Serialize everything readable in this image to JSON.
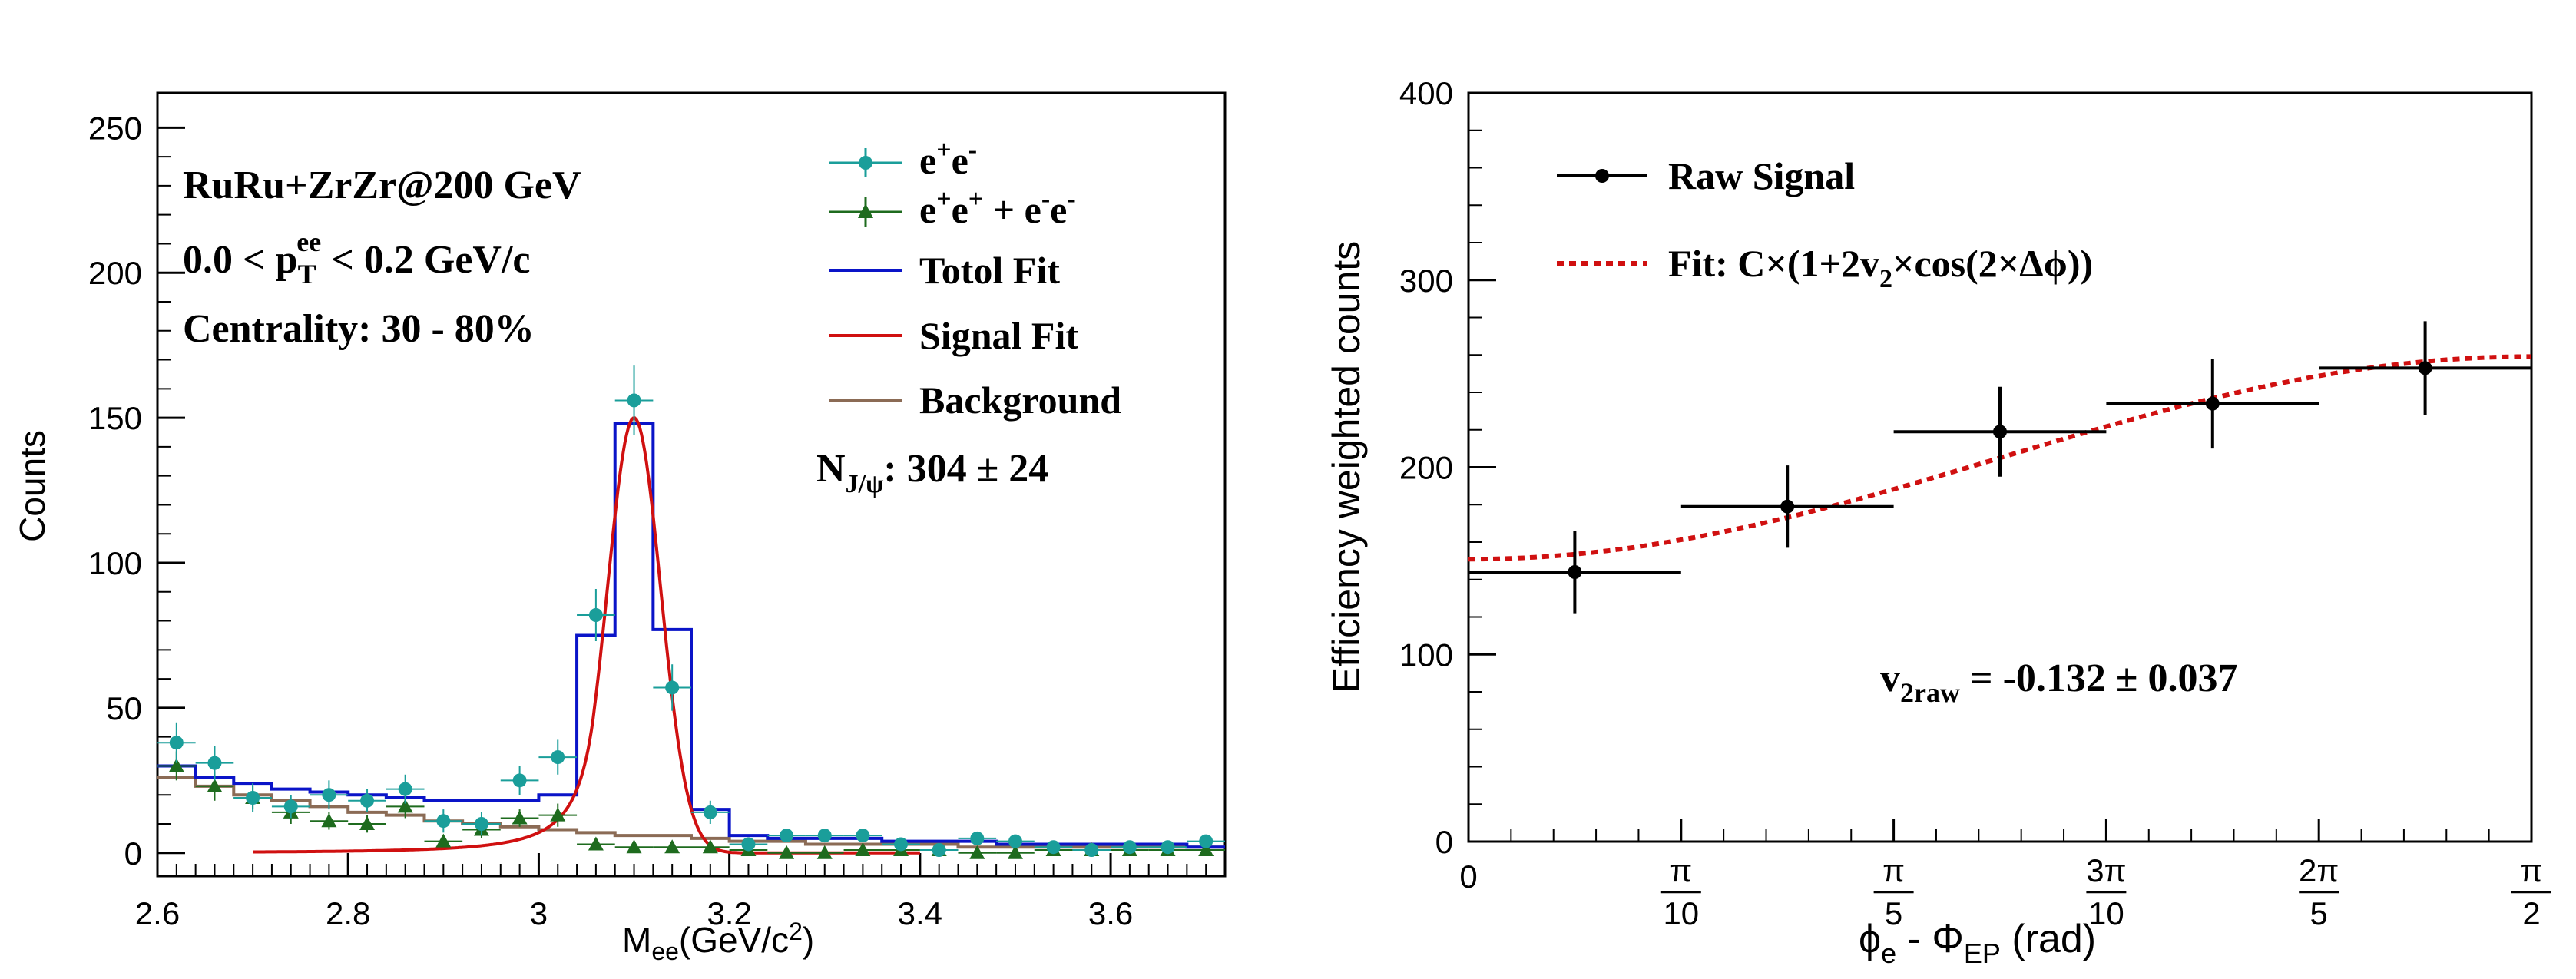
{
  "chart_data": [
    {
      "type": "scatter",
      "panel": "left",
      "xlabel": "M",
      "xlabel_sub": "ee",
      "xlabel_units": "(GeV/c",
      "xlabel_units_sup": "2",
      "xlabel_units_close": ")",
      "ylabel": "Counts",
      "xlim": [
        2.6,
        3.72
      ],
      "ylim": [
        -8,
        262
      ],
      "x_ticks": [
        2.6,
        2.8,
        3.0,
        3.2,
        3.4,
        3.6
      ],
      "x_tick_labels": [
        "2.6",
        "2.8",
        "3",
        "3.2",
        "3.4",
        "3.6"
      ],
      "y_ticks": [
        0,
        50,
        100,
        150,
        200,
        250
      ],
      "y_tick_labels": [
        "0",
        "50",
        "100",
        "150",
        "200",
        "250"
      ],
      "annotations": {
        "system": "RuRu+ZrZr@200 GeV",
        "pt_pre": "0.0 < p",
        "pt_sub": "T",
        "pt_sup": "ee",
        "pt_post": " < 0.2 GeV/c",
        "centrality": "Centrality: 30 - 80%",
        "njpsi_pre": "N",
        "njpsi_sub": "J/ψ",
        "njpsi_post": ": 304  ± 24"
      },
      "legend": {
        "unlike_sign": {
          "a": "e",
          "b": "+",
          "c": "e",
          "d": "-"
        },
        "like_sign": {
          "a": "e",
          "b": "+",
          "c": "e",
          "d": "+",
          "e": " + e",
          "f": "-",
          "g": "e",
          "h": "-"
        },
        "total_fit": "Totol Fit",
        "signal_fit": "Signal Fit",
        "background": "Background"
      },
      "colors": {
        "unlike_sign": "#1a9e9a",
        "like_sign": "#1e6b1e",
        "total_fit": "#0a14c8",
        "signal_fit": "#d01010",
        "background": "#8b6b55"
      },
      "series": [
        {
          "name": "e+e-",
          "x": [
            2.62,
            2.66,
            2.7,
            2.74,
            2.78,
            2.82,
            2.86,
            2.9,
            2.94,
            2.98,
            3.02,
            3.06,
            3.1,
            3.14,
            3.18,
            3.22,
            3.26,
            3.3,
            3.34,
            3.38,
            3.42,
            3.46,
            3.5,
            3.54,
            3.58,
            3.62,
            3.66,
            3.7
          ],
          "y": [
            38,
            31,
            19,
            16,
            20,
            18,
            22,
            11,
            10,
            25,
            33,
            82,
            156,
            57,
            14,
            3,
            6,
            6,
            6,
            3,
            1,
            5,
            4,
            2,
            1,
            2,
            2,
            4
          ],
          "yerr": [
            7,
            6,
            5,
            4,
            5,
            4,
            5,
            4,
            4,
            5,
            6,
            9,
            12,
            8,
            4,
            2,
            2,
            2,
            2,
            2,
            1,
            2,
            2,
            1,
            1,
            1,
            1,
            2
          ]
        },
        {
          "name": "e+e+ + e-e-",
          "x": [
            2.62,
            2.66,
            2.7,
            2.74,
            2.78,
            2.82,
            2.86,
            2.9,
            2.94,
            2.98,
            3.02,
            3.06,
            3.1,
            3.14,
            3.18,
            3.22,
            3.26,
            3.3,
            3.34,
            3.38,
            3.42,
            3.46,
            3.5,
            3.54,
            3.58,
            3.62,
            3.66,
            3.7
          ],
          "y": [
            30,
            23,
            19,
            14,
            11,
            10,
            16,
            4,
            8,
            12,
            13,
            3,
            2,
            2,
            2,
            1,
            0,
            0,
            1,
            1,
            1,
            0,
            0,
            1,
            1,
            1,
            1,
            1
          ],
          "yerr": [
            5,
            5,
            4,
            4,
            3,
            3,
            4,
            2,
            3,
            3,
            4,
            2,
            1,
            1,
            1,
            1,
            1,
            1,
            1,
            1,
            1,
            1,
            1,
            1,
            1,
            1,
            1,
            1
          ]
        },
        {
          "name": "Totol Fit",
          "edges": [
            2.6,
            2.64,
            2.68,
            2.72,
            2.76,
            2.8,
            2.84,
            2.88,
            2.92,
            2.96,
            3.0,
            3.04,
            3.08,
            3.12,
            3.16,
            3.2,
            3.24,
            3.28,
            3.32,
            3.36,
            3.4,
            3.44,
            3.48,
            3.52,
            3.56,
            3.6,
            3.64,
            3.68,
            3.72
          ],
          "values": [
            30,
            26,
            24,
            22,
            21,
            20,
            19,
            18,
            18,
            18,
            20,
            75,
            148,
            77,
            15,
            6,
            5,
            5,
            5,
            4,
            4,
            4,
            3,
            3,
            3,
            3,
            3,
            2
          ]
        },
        {
          "name": "Signal Fit",
          "x_range": [
            2.7,
            3.4
          ],
          "peak": 150,
          "mean": 3.1,
          "sigma": 0.028,
          "tail_amplitude": 0.38
        },
        {
          "name": "Background",
          "edges": [
            2.6,
            2.64,
            2.68,
            2.72,
            2.76,
            2.8,
            2.84,
            2.88,
            2.92,
            2.96,
            3.0,
            3.04,
            3.08,
            3.12,
            3.16,
            3.2,
            3.24,
            3.28,
            3.32,
            3.36,
            3.4,
            3.44,
            3.48,
            3.52,
            3.56,
            3.6,
            3.64,
            3.68,
            3.72
          ],
          "values": [
            26,
            23,
            20,
            18,
            16,
            14,
            13,
            11,
            10,
            9,
            8,
            7,
            6,
            6,
            5,
            4,
            4,
            3,
            3,
            3,
            3,
            2,
            2,
            2,
            2,
            2,
            2,
            2
          ]
        }
      ]
    },
    {
      "type": "scatter",
      "panel": "right",
      "xlabel": "ϕ",
      "xlabel_sub": "e",
      "xlabel_mid": " - Φ",
      "xlabel_sub2": "EP",
      "xlabel_units": " (rad)",
      "ylabel": "Efficiency weighted counts",
      "xlim": [
        0,
        1.5708
      ],
      "ylim": [
        0,
        400
      ],
      "x_ticks": [
        0,
        0.31416,
        0.62832,
        0.94248,
        1.25664,
        1.5708
      ],
      "x_tick_labels": [
        {
          "num": "",
          "den": "",
          "plain": "0"
        },
        {
          "num": "π",
          "den": "10",
          "plain": ""
        },
        {
          "num": "π",
          "den": "5",
          "plain": ""
        },
        {
          "num": "3π",
          "den": "10",
          "plain": ""
        },
        {
          "num": "2π",
          "den": "5",
          "plain": ""
        },
        {
          "num": "π",
          "den": "2",
          "plain": ""
        }
      ],
      "y_ticks": [
        0,
        100,
        200,
        300,
        400
      ],
      "y_tick_labels": [
        "0",
        "100",
        "200",
        "300",
        "400"
      ],
      "legend": {
        "raw": "Raw Signal",
        "fit_pre": "Fit: C×(1+2v",
        "fit_sub": "2",
        "fit_post": "×cos(2×Δϕ))"
      },
      "annotation": {
        "pre": "v",
        "sub": "2raw",
        "post": " = -0.132  ± 0.037"
      },
      "colors": {
        "raw": "#000000",
        "fit": "#d01010"
      },
      "series": [
        {
          "name": "Raw Signal",
          "x": [
            0.15708,
            0.47124,
            0.7854,
            1.09956,
            1.41372
          ],
          "xerr": [
            0.15708,
            0.15708,
            0.15708,
            0.15708,
            0.15708
          ],
          "y": [
            144,
            179,
            219,
            234,
            253
          ],
          "yerr": [
            22,
            22,
            24,
            24,
            25
          ]
        },
        {
          "name": "Fit",
          "function": "C*(1+2*v2*cos(2*x))",
          "C": 205,
          "v2": -0.132
        }
      ]
    }
  ]
}
